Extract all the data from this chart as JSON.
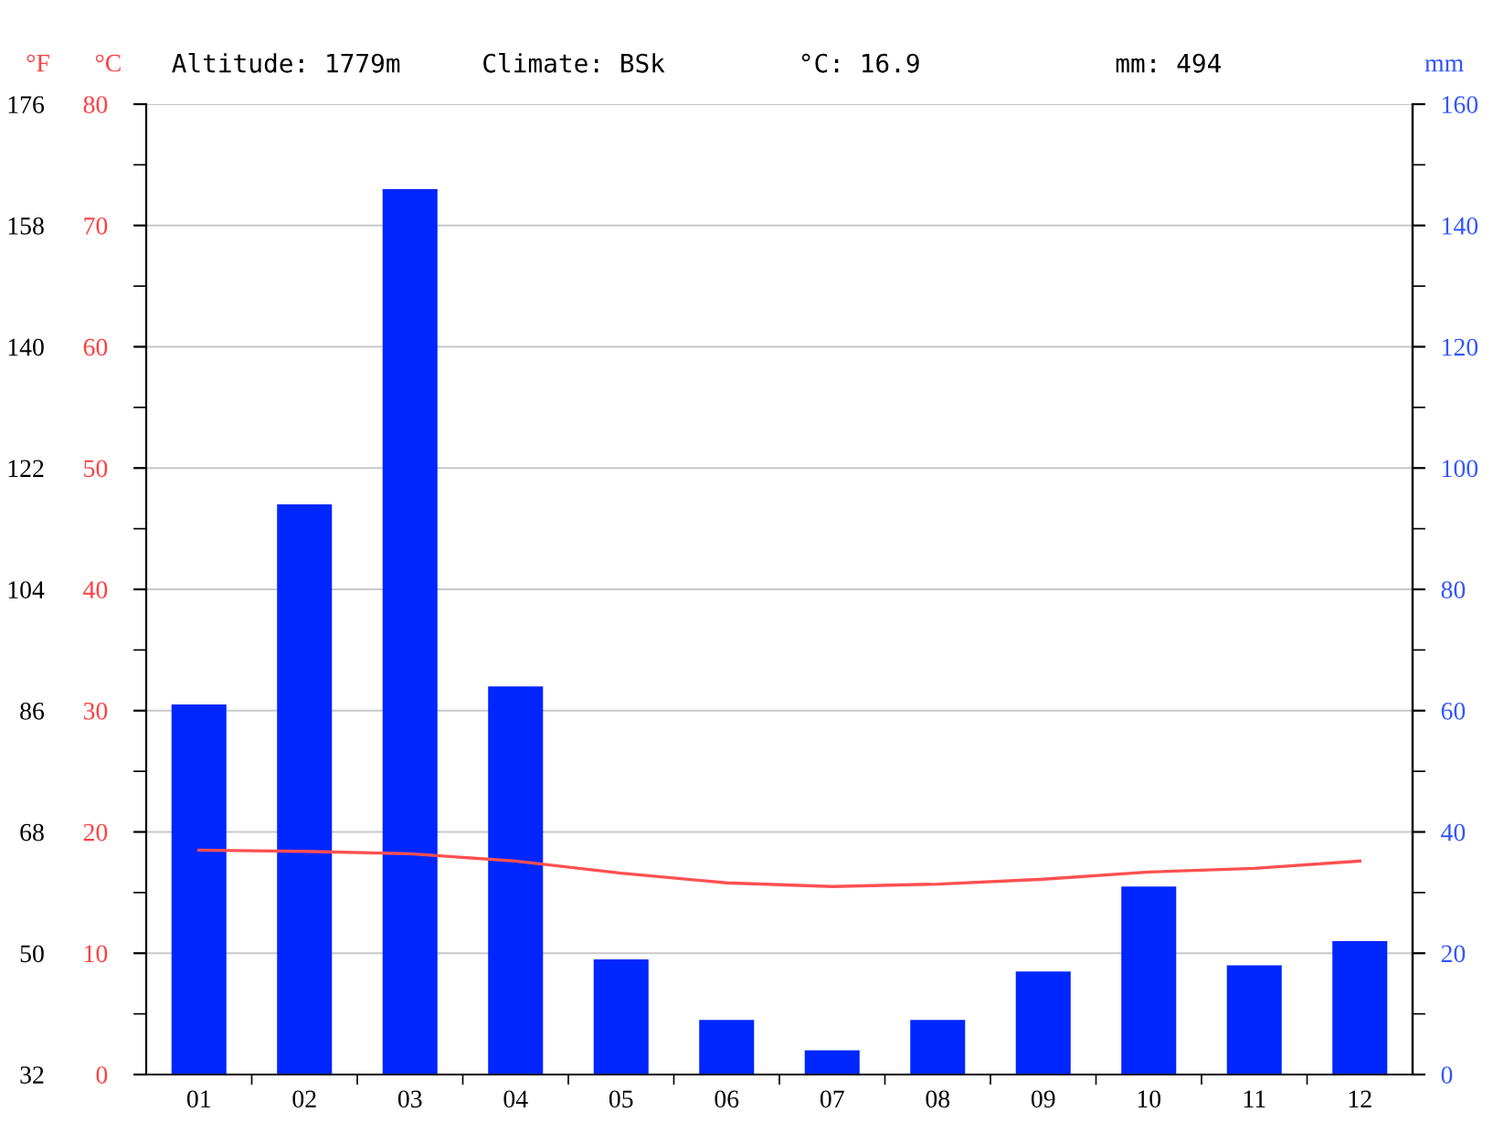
{
  "chart_data": {
    "type": "bar",
    "categories": [
      "01",
      "02",
      "03",
      "04",
      "05",
      "06",
      "07",
      "08",
      "09",
      "10",
      "11",
      "12"
    ],
    "series": [
      {
        "axis": "y2",
        "color": "#0026ff",
        "values": [
          61,
          94,
          146,
          64,
          19,
          9,
          4,
          9,
          17,
          31,
          18,
          22
        ]
      },
      {
        "type": "line",
        "axis": "y",
        "color": "#ff5050",
        "values": [
          18.5,
          18.4,
          18.2,
          17.6,
          16.6,
          15.8,
          15.5,
          15.7,
          16.1,
          16.7,
          17.0,
          17.6
        ]
      }
    ],
    "ylabel": "°C",
    "ylim": [
      0,
      80
    ],
    "yticks": [
      0,
      10,
      20,
      30,
      40,
      50,
      60,
      70,
      80
    ],
    "y2label": "mm",
    "y2lim": [
      0,
      160
    ],
    "y2ticks": [
      0,
      20,
      40,
      60,
      80,
      100,
      120,
      140,
      160
    ],
    "y3label": "°F",
    "y3lim": [
      32,
      176
    ],
    "y3ticks": [
      32,
      50,
      68,
      86,
      104,
      122,
      140,
      158,
      176
    ],
    "annotations": [
      "Altitude: 1779m",
      "Climate: BSk",
      "°C: 16.9",
      "mm: 494"
    ],
    "grid": "y",
    "legend": false,
    "marker": "none",
    "line_style": "solid"
  }
}
